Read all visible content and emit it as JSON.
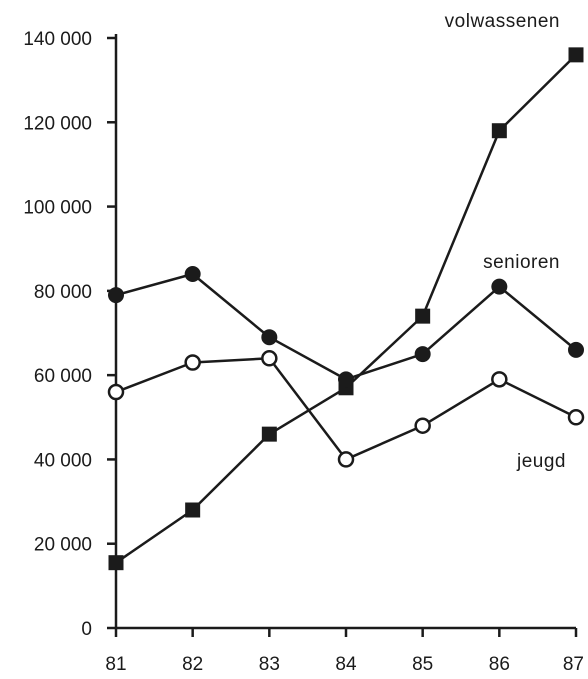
{
  "chart_data": {
    "type": "line",
    "title": "",
    "xlabel": "",
    "ylabel": "",
    "categories": [
      "81",
      "82",
      "83",
      "84",
      "85",
      "86",
      "87"
    ],
    "y_ticks": [
      0,
      20000,
      40000,
      60000,
      80000,
      100000,
      120000,
      140000
    ],
    "y_tick_labels": [
      "0",
      "20 000",
      "40 000",
      "60 000",
      "80 000",
      "100 000",
      "120 000",
      "140 000"
    ],
    "ylim": [
      0,
      140000
    ],
    "grid": false,
    "legend": "none",
    "series": [
      {
        "name": "volwassenen",
        "marker": "filled-square",
        "values": [
          15500,
          28000,
          46000,
          57000,
          74000,
          118000,
          136000
        ],
        "color": "#1b1b1b"
      },
      {
        "name": "senioren",
        "marker": "filled-circle",
        "values": [
          79000,
          84000,
          69000,
          59000,
          65000,
          81000,
          66000
        ],
        "color": "#1b1b1b"
      },
      {
        "name": "jeugd",
        "marker": "open-circle",
        "values": [
          56000,
          63000,
          64000,
          40000,
          48000,
          59000,
          50000
        ],
        "color": "#1b1b1b"
      }
    ]
  }
}
